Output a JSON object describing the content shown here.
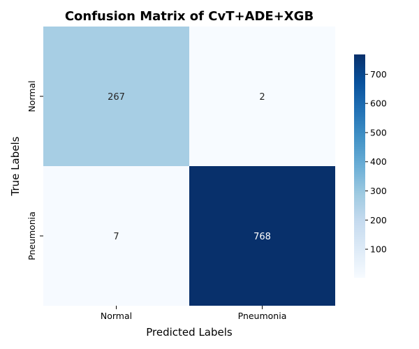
{
  "chart_data": {
    "type": "heatmap",
    "title": "Confusion Matrix of CvT+ADE+XGB",
    "xlabel": "Predicted Labels",
    "ylabel": "True Labels",
    "x_categories": [
      "Normal",
      "Pneumonia"
    ],
    "y_categories": [
      "Normal",
      "Pneumonia"
    ],
    "values": [
      [
        267,
        2
      ],
      [
        7,
        768
      ]
    ],
    "colormap": "Blues",
    "color_range": [
      2,
      768
    ],
    "colorbar": {
      "ticks": [
        100,
        200,
        300,
        400,
        500,
        600,
        700
      ],
      "tick_labels": [
        "100",
        "200",
        "300",
        "400",
        "500",
        "600",
        "700"
      ]
    },
    "dark_text_color": "#262626",
    "light_text_color": "#ffffff"
  }
}
